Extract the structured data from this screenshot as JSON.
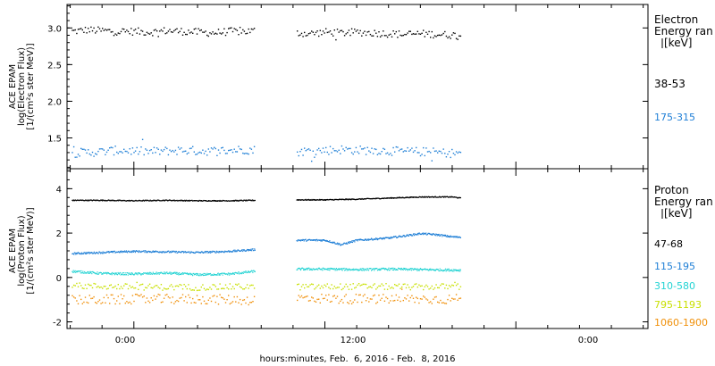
{
  "x_axis": {
    "ticks": [
      "0:00",
      "12:00",
      "0:00"
    ],
    "title": "hours:minutes, Feb.  6, 2016 - Feb.  8, 2016"
  },
  "panels": [
    {
      "ylabel_lines": [
        "ACE EPAM",
        "log(Electron Flux)",
        "[1/(cm²s ster MeV)]"
      ],
      "legend": {
        "title_lines": [
          "Electron",
          "Energy ran",
          "[keV]"
        ],
        "items": [
          {
            "label": "38-53",
            "color": "#000000"
          },
          {
            "label": "175-315",
            "color": "#1f7fd6"
          }
        ]
      }
    },
    {
      "ylabel_lines": [
        "ACE EPAM",
        "log(Proton Flux)",
        "[1/(cm²s ster MeV)]"
      ],
      "legend": {
        "title_lines": [
          "Proton",
          "Energy ran",
          "[keV]"
        ],
        "items": [
          {
            "label": "47-68",
            "color": "#000000"
          },
          {
            "label": "115-195",
            "color": "#1f7fd6"
          },
          {
            "label": "310-580",
            "color": "#22d3d3"
          },
          {
            "label": "795-1193",
            "color": "#c8e000"
          },
          {
            "label": "1060-1900",
            "color": "#f0900a"
          }
        ]
      }
    }
  ],
  "chart_data": [
    {
      "type": "scatter",
      "title": "",
      "xlabel": "hours:minutes, Feb.  6, 2016 - Feb.  8, 2016",
      "ylabel": "ACE EPAM log(Electron Flux) [1/(cm²s ster MeV)]",
      "xlim": [
        -4.2,
        32.3
      ],
      "ylim": [
        1.08,
        3.32
      ],
      "y_ticks": [
        1.5,
        2.0,
        2.5,
        3.0
      ],
      "y_tick_labels": [
        "1.5",
        "2.0",
        "2.5",
        "3.0"
      ],
      "x_ticks": [
        0,
        12,
        24
      ],
      "x_tick_labels": [
        "0:00",
        "12:00",
        "0:00"
      ],
      "data_gaps_hours": [
        [
          7.6,
          10.2
        ]
      ],
      "data_end_hours": 20.5,
      "series": [
        {
          "name": "38-53",
          "color": "#000000",
          "mean": 2.95,
          "spread": 0.05,
          "scatter": true,
          "x": [
            -3.9,
            -3,
            -2,
            -1,
            0,
            1,
            2,
            3,
            4,
            5,
            6,
            7,
            7.6,
            10.2,
            11,
            12,
            13,
            14,
            15,
            16,
            17,
            18,
            19,
            20,
            20.5
          ],
          "y": [
            2.96,
            2.98,
            2.97,
            2.96,
            2.96,
            2.95,
            2.97,
            2.96,
            2.95,
            2.94,
            2.96,
            2.96,
            2.97,
            2.94,
            2.93,
            2.95,
            2.94,
            2.95,
            2.94,
            2.93,
            2.92,
            2.93,
            2.92,
            2.91,
            2.91
          ]
        },
        {
          "name": "175-315",
          "color": "#1f7fd6",
          "mean": 1.33,
          "spread": 0.06,
          "scatter": true,
          "x": [
            -3.9,
            -3,
            -2,
            -1,
            0,
            1,
            2,
            3,
            4,
            5,
            6,
            7,
            7.6,
            10.2,
            11,
            12,
            13,
            14,
            15,
            16,
            17,
            18,
            19,
            20,
            20.5
          ],
          "y": [
            1.3,
            1.31,
            1.32,
            1.34,
            1.33,
            1.32,
            1.33,
            1.34,
            1.33,
            1.33,
            1.34,
            1.35,
            1.34,
            1.32,
            1.33,
            1.34,
            1.35,
            1.34,
            1.34,
            1.33,
            1.32,
            1.32,
            1.31,
            1.3,
            1.3
          ]
        }
      ]
    },
    {
      "type": "scatter",
      "title": "",
      "xlabel": "hours:minutes, Feb.  6, 2016 - Feb.  8, 2016",
      "ylabel": "ACE EPAM log(Proton Flux) [1/(cm²s ster MeV)]",
      "xlim": [
        -4.2,
        32.3
      ],
      "ylim": [
        -2.3,
        4.9
      ],
      "y_ticks": [
        -2,
        0,
        2,
        4
      ],
      "y_tick_labels": [
        "-2",
        "0",
        "2",
        "4"
      ],
      "x_ticks": [
        0,
        12,
        24
      ],
      "x_tick_labels": [
        "0:00",
        "12:00",
        "0:00"
      ],
      "data_gaps_hours": [
        [
          7.6,
          10.2
        ]
      ],
      "data_end_hours": 20.5,
      "series": [
        {
          "name": "47-68",
          "color": "#000000",
          "spread": 0.02,
          "scatter": false,
          "x": [
            -3.9,
            -2,
            0,
            2,
            4,
            6,
            7.6,
            10.2,
            12,
            14,
            16,
            18,
            20,
            20.5
          ],
          "y": [
            3.5,
            3.5,
            3.48,
            3.5,
            3.48,
            3.48,
            3.5,
            3.52,
            3.52,
            3.55,
            3.6,
            3.65,
            3.65,
            3.6
          ]
        },
        {
          "name": "115-195",
          "color": "#1f7fd6",
          "spread": 0.04,
          "scatter": false,
          "x": [
            -3.9,
            -2,
            0,
            2,
            4,
            6,
            7.6,
            10.2,
            12,
            13,
            14,
            16,
            18,
            19,
            20,
            20.5
          ],
          "y": [
            1.1,
            1.15,
            1.2,
            1.18,
            1.15,
            1.2,
            1.28,
            1.7,
            1.7,
            1.5,
            1.7,
            1.8,
            2.0,
            1.95,
            1.85,
            1.85
          ]
        },
        {
          "name": "310-580",
          "color": "#22d3d3",
          "spread": 0.05,
          "scatter": false,
          "x": [
            -3.9,
            -2,
            0,
            2,
            4,
            6,
            7.6,
            10.2,
            12,
            14,
            16,
            18,
            20.5
          ],
          "y": [
            0.3,
            0.2,
            0.18,
            0.22,
            0.15,
            0.18,
            0.3,
            0.4,
            0.4,
            0.38,
            0.4,
            0.38,
            0.35
          ]
        },
        {
          "name": "795-1193",
          "color": "#c8e000",
          "mean": -0.4,
          "spread": 0.14,
          "scatter": true,
          "x": [
            -3.9,
            0,
            4,
            7.6,
            10.2,
            14,
            18,
            20.5
          ],
          "y": [
            -0.35,
            -0.4,
            -0.42,
            -0.38,
            -0.4,
            -0.38,
            -0.4,
            -0.38
          ]
        },
        {
          "name": "1060-1900",
          "color": "#f0900a",
          "mean": -0.95,
          "spread": 0.22,
          "scatter": true,
          "x": [
            -3.9,
            0,
            4,
            7.6,
            10.2,
            14,
            18,
            20.5
          ],
          "y": [
            -1.0,
            -0.95,
            -0.95,
            -1.0,
            -0.9,
            -0.95,
            -0.95,
            -0.95
          ]
        }
      ]
    }
  ]
}
